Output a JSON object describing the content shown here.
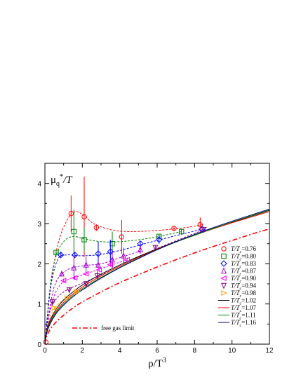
{
  "chart_data": {
    "type": "scatter",
    "title": "",
    "xlabel": "ρ/T³",
    "ylabel": "μ_q*/T",
    "xlim": [
      0,
      12
    ],
    "ylim": [
      0,
      4.5
    ],
    "x_ticks": [
      0,
      2,
      4,
      6,
      8,
      10,
      12
    ],
    "y_ticks": [
      0,
      1,
      2,
      3,
      4
    ],
    "grid": false,
    "legend_position": "right",
    "series": [
      {
        "name": "T/T_c=0.76",
        "color": "#ff0000",
        "marker": "circle",
        "points": [
          [
            0.05,
            0.05
          ],
          [
            1.4,
            3.25
          ],
          [
            2.1,
            3.17
          ],
          [
            2.75,
            2.9
          ],
          [
            4.1,
            2.67
          ],
          [
            6.9,
            2.88
          ],
          [
            8.3,
            2.97
          ]
        ],
        "errors": [
          0.02,
          0.45,
          1.0,
          0.08,
          0.42,
          0.05,
          0.18
        ],
        "curve": [
          [
            0,
            0
          ],
          [
            0.3,
            1.4
          ],
          [
            0.7,
            2.5
          ],
          [
            1.2,
            3.1
          ],
          [
            1.6,
            3.3
          ],
          [
            2.1,
            3.2
          ],
          [
            2.6,
            3.0
          ],
          [
            3.5,
            2.85
          ],
          [
            4.5,
            2.8
          ],
          [
            6,
            2.83
          ],
          [
            7.5,
            2.9
          ],
          [
            8.5,
            2.98
          ]
        ]
      },
      {
        "name": "T/T_c=0.80",
        "color": "#008000",
        "marker": "square",
        "points": [
          [
            0.6,
            2.28
          ],
          [
            1.55,
            2.8
          ],
          [
            2.1,
            2.6
          ],
          [
            3.6,
            2.5
          ],
          [
            6.1,
            2.68
          ],
          [
            7.3,
            2.8
          ]
        ],
        "errors": [
          0.05,
          0.55,
          0.3,
          0.3,
          0.05,
          0.05
        ],
        "curve": [
          [
            0,
            0
          ],
          [
            0.3,
            1.5
          ],
          [
            0.6,
            2.2
          ],
          [
            1.0,
            2.55
          ],
          [
            1.5,
            2.68
          ],
          [
            2.1,
            2.62
          ],
          [
            3,
            2.55
          ],
          [
            4,
            2.55
          ],
          [
            5.5,
            2.63
          ],
          [
            7.3,
            2.8
          ]
        ]
      },
      {
        "name": "T/T_c=0.83",
        "color": "#0000ff",
        "marker": "diamond",
        "points": [
          [
            0.85,
            2.22
          ],
          [
            1.6,
            2.22
          ],
          [
            2.85,
            2.25
          ],
          [
            3.5,
            2.3
          ],
          [
            5.1,
            2.5
          ],
          [
            6.1,
            2.6
          ],
          [
            8.4,
            2.86
          ]
        ],
        "errors": [
          0.08,
          0.05,
          0.3,
          0.3,
          0.05,
          0.1,
          0.05
        ],
        "curve": [
          [
            0,
            0
          ],
          [
            0.3,
            1.4
          ],
          [
            0.7,
            2.12
          ],
          [
            1.2,
            2.22
          ],
          [
            1.8,
            2.2
          ],
          [
            2.8,
            2.22
          ],
          [
            4,
            2.33
          ],
          [
            5.5,
            2.52
          ],
          [
            7,
            2.7
          ],
          [
            8.4,
            2.86
          ]
        ]
      },
      {
        "name": "T/T_c=0.87",
        "color": "#a000c8",
        "marker": "triangle-up",
        "points": [
          [
            0.9,
            1.75
          ],
          [
            1.55,
            1.9
          ],
          [
            2.2,
            1.97
          ],
          [
            2.85,
            1.97
          ],
          [
            3.6,
            2.1
          ],
          [
            4.2,
            2.2
          ],
          [
            5.1,
            2.35
          ]
        ],
        "errors": [
          0.05,
          0.3,
          0.2,
          0.08,
          0.2,
          0.2,
          0.1
        ],
        "curve": [
          [
            0,
            0
          ],
          [
            0.3,
            1.0
          ],
          [
            0.6,
            1.55
          ],
          [
            1.2,
            1.85
          ],
          [
            2,
            1.95
          ],
          [
            3,
            2.0
          ],
          [
            4,
            2.15
          ],
          [
            5.1,
            2.32
          ]
        ]
      },
      {
        "name": "T/T_c=0.90",
        "color": "#ff00ff",
        "marker": "triangle-left",
        "points": [
          [
            1.0,
            1.58
          ],
          [
            1.6,
            1.65
          ],
          [
            2.2,
            1.75
          ],
          [
            2.9,
            1.85
          ],
          [
            3.5,
            1.98
          ],
          [
            4.4,
            2.1
          ]
        ],
        "errors": [
          0.05,
          0.05,
          0.05,
          0.05,
          0.05,
          0.05
        ],
        "curve": [
          [
            0,
            0
          ],
          [
            0.3,
            0.9
          ],
          [
            0.7,
            1.4
          ],
          [
            1.2,
            1.6
          ],
          [
            2,
            1.72
          ],
          [
            3,
            1.88
          ],
          [
            4.4,
            2.1
          ]
        ]
      },
      {
        "name": "T/T_c=0.94",
        "color": "#800080",
        "marker": "triangle-down",
        "points": [
          [
            0.4,
            1.05
          ],
          [
            1.3,
            1.35
          ],
          [
            2.2,
            1.5
          ],
          [
            2.8,
            1.7
          ],
          [
            5.9,
            2.4
          ],
          [
            8.5,
            2.85
          ]
        ],
        "errors": [
          0.05,
          0.05,
          0.05,
          0.12,
          0.05,
          0.05
        ],
        "curve": [
          [
            0,
            0
          ],
          [
            0.2,
            0.7
          ],
          [
            0.5,
            1.05
          ],
          [
            1,
            1.3
          ],
          [
            2,
            1.52
          ],
          [
            3,
            1.72
          ],
          [
            4.5,
            2.05
          ],
          [
            6,
            2.38
          ],
          [
            8.5,
            2.85
          ]
        ]
      },
      {
        "name": "T/T_c=0.98",
        "color": "#ffa500",
        "marker": "triangle-right",
        "points": [
          [
            0.5,
            0.9
          ],
          [
            1.2,
            1.15
          ],
          [
            1.7,
            1.3
          ]
        ],
        "errors": [
          0.05,
          0.05,
          0.05
        ],
        "curve": [
          [
            0,
            0
          ],
          [
            0.2,
            0.55
          ],
          [
            0.5,
            0.88
          ],
          [
            1,
            1.1
          ],
          [
            1.7,
            1.3
          ],
          [
            2.5,
            1.45
          ]
        ]
      },
      {
        "name": "T/T_c=1.02",
        "color": "#000000",
        "marker": "none",
        "curve": [
          [
            0,
            0
          ],
          [
            0.1,
            0.35
          ],
          [
            0.3,
            0.62
          ],
          [
            0.6,
            0.87
          ],
          [
            1,
            1.1
          ],
          [
            1.5,
            1.3
          ],
          [
            2,
            1.47
          ],
          [
            3,
            1.74
          ],
          [
            4,
            1.97
          ],
          [
            5,
            2.18
          ],
          [
            6,
            2.37
          ],
          [
            7,
            2.55
          ],
          [
            8,
            2.72
          ],
          [
            9,
            2.88
          ],
          [
            10,
            3.03
          ],
          [
            11,
            3.18
          ],
          [
            12,
            3.33
          ]
        ]
      },
      {
        "name": "T/T_c=1.07",
        "color": "#ff0000",
        "marker": "none",
        "curve": [
          [
            0,
            0
          ],
          [
            0.1,
            0.32
          ],
          [
            0.3,
            0.58
          ],
          [
            0.6,
            0.82
          ],
          [
            1,
            1.04
          ],
          [
            1.5,
            1.25
          ],
          [
            2,
            1.42
          ],
          [
            3,
            1.7
          ],
          [
            4,
            1.94
          ],
          [
            5,
            2.16
          ],
          [
            6,
            2.36
          ],
          [
            7,
            2.54
          ],
          [
            8,
            2.71
          ],
          [
            9,
            2.87
          ],
          [
            10,
            3.02
          ],
          [
            11,
            3.16
          ],
          [
            12,
            3.3
          ]
        ]
      },
      {
        "name": "T/T_c=1.11",
        "color": "#008000",
        "marker": "none",
        "curve": [
          [
            0,
            0
          ],
          [
            0.1,
            0.3
          ],
          [
            0.3,
            0.55
          ],
          [
            0.6,
            0.79
          ],
          [
            1,
            1.0
          ],
          [
            1.5,
            1.21
          ],
          [
            2,
            1.38
          ],
          [
            3,
            1.66
          ],
          [
            4,
            1.91
          ],
          [
            5,
            2.14
          ],
          [
            6,
            2.35
          ],
          [
            7,
            2.54
          ],
          [
            8,
            2.71
          ],
          [
            9,
            2.88
          ],
          [
            10,
            3.04
          ],
          [
            11,
            3.19
          ],
          [
            12,
            3.34
          ]
        ]
      },
      {
        "name": "T/T_c=1.16",
        "color": "#000080",
        "marker": "none",
        "curve": [
          [
            0,
            0
          ],
          [
            0.1,
            0.28
          ],
          [
            0.3,
            0.52
          ],
          [
            0.6,
            0.76
          ],
          [
            1,
            0.97
          ],
          [
            1.5,
            1.18
          ],
          [
            2,
            1.35
          ],
          [
            3,
            1.64
          ],
          [
            4,
            1.9
          ],
          [
            5,
            2.13
          ],
          [
            6,
            2.35
          ],
          [
            7,
            2.55
          ],
          [
            8,
            2.73
          ],
          [
            9,
            2.9
          ],
          [
            10,
            3.06
          ],
          [
            11,
            3.21
          ],
          [
            12,
            3.36
          ]
        ]
      },
      {
        "name": "free gas limit",
        "color": "#ff0000",
        "marker": "none",
        "dash": "dash-dot",
        "curve": [
          [
            0,
            0
          ],
          [
            0.1,
            0.2
          ],
          [
            0.3,
            0.38
          ],
          [
            0.6,
            0.55
          ],
          [
            1,
            0.72
          ],
          [
            1.5,
            0.9
          ],
          [
            2,
            1.05
          ],
          [
            3,
            1.3
          ],
          [
            4,
            1.53
          ],
          [
            5,
            1.73
          ],
          [
            6,
            1.92
          ],
          [
            7,
            2.1
          ],
          [
            8,
            2.27
          ],
          [
            9,
            2.43
          ],
          [
            10,
            2.58
          ],
          [
            11,
            2.73
          ],
          [
            12,
            2.87
          ]
        ]
      }
    ]
  }
}
